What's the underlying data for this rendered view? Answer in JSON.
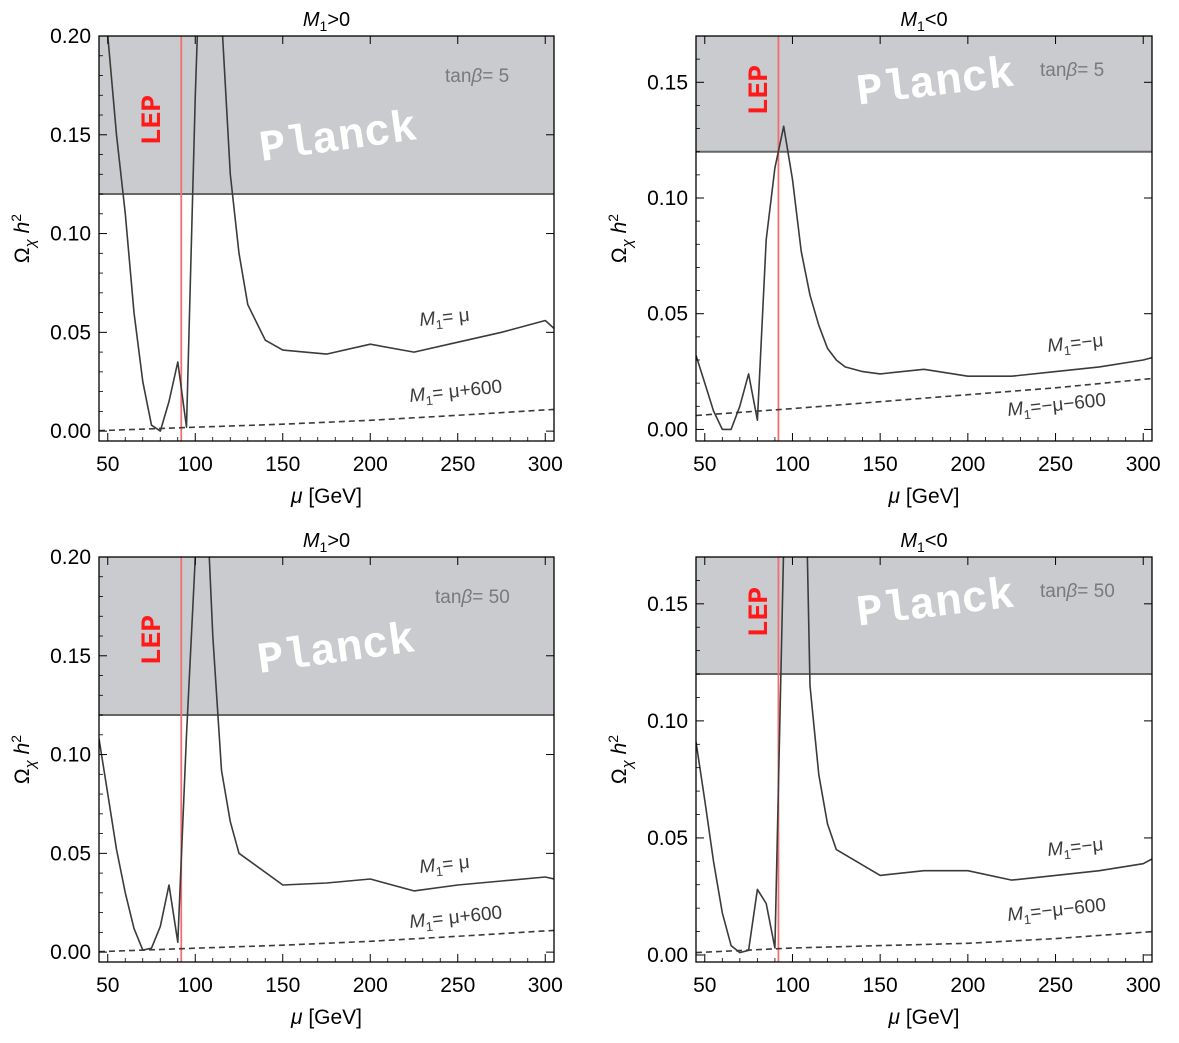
{
  "chart_data": [
    {
      "type": "line",
      "title": "M1>0",
      "title_main": "M",
      "title_sub": "1",
      "title_tail": ">0",
      "xlabel": "[GeV]",
      "xlabel_var": "μ",
      "ylabel_omega": "Ω",
      "ylabel_chi": "χ",
      "ylabel_h": "h",
      "ylabel_pow": "2",
      "xlim": [
        45,
        305
      ],
      "ylim": [
        -0.005,
        0.2
      ],
      "xticks": [
        50,
        100,
        150,
        200,
        250,
        300
      ],
      "yticks": [
        0.0,
        0.05,
        0.1,
        0.15,
        0.2
      ],
      "ytick_labels": [
        "0.00",
        "0.05",
        "0.10",
        "0.15",
        "0.20"
      ],
      "shaded_region": {
        "label": "Planck",
        "y_from": 0.12,
        "y_to": 0.2
      },
      "lep_line": {
        "label": "LEP",
        "x": 92
      },
      "annotation": {
        "text": "tanβ= 5",
        "pre": "tan",
        "beta": "β",
        "post": "= 5"
      },
      "series": [
        {
          "name": "M1= μ",
          "label_a": "M",
          "label_sub": "1",
          "label_b": "= μ",
          "style": "solid",
          "x": [
            45,
            50,
            55,
            60,
            65,
            70,
            75,
            80,
            85,
            90,
            95,
            100,
            105,
            110,
            115,
            120,
            125,
            130,
            140,
            150,
            175,
            200,
            225,
            250,
            275,
            300,
            305
          ],
          "y": [
            0.25,
            0.2,
            0.15,
            0.11,
            0.06,
            0.025,
            0.003,
            0.0,
            0.015,
            0.035,
            0.002,
            0.17,
            0.3,
            0.3,
            0.21,
            0.13,
            0.09,
            0.064,
            0.046,
            0.041,
            0.039,
            0.044,
            0.04,
            0.045,
            0.05,
            0.056,
            0.052
          ]
        },
        {
          "name": "M1= μ+600",
          "label_a": "M",
          "label_sub": "1",
          "label_b": "= μ+600",
          "style": "dashed",
          "x": [
            45,
            100,
            150,
            200,
            250,
            305
          ],
          "y": [
            0.0002,
            0.002,
            0.0035,
            0.0055,
            0.008,
            0.011
          ]
        }
      ]
    },
    {
      "type": "line",
      "title": "M1<0",
      "title_main": "M",
      "title_sub": "1",
      "title_tail": "<0",
      "xlabel": "[GeV]",
      "xlabel_var": "μ",
      "ylabel_omega": "Ω",
      "ylabel_chi": "χ",
      "ylabel_h": "h",
      "ylabel_pow": "2",
      "xlim": [
        45,
        305
      ],
      "ylim": [
        -0.005,
        0.17
      ],
      "xticks": [
        50,
        100,
        150,
        200,
        250,
        300
      ],
      "yticks": [
        0.0,
        0.05,
        0.1,
        0.15
      ],
      "ytick_labels": [
        "0.00",
        "0.05",
        "0.10",
        "0.15"
      ],
      "shaded_region": {
        "label": "Planck",
        "y_from": 0.12,
        "y_to": 0.17
      },
      "lep_line": {
        "label": "LEP",
        "x": 92
      },
      "annotation": {
        "text": "tanβ= 5",
        "pre": "tan",
        "beta": "β",
        "post": "= 5"
      },
      "series": [
        {
          "name": "M1=−μ",
          "label_a": "M",
          "label_sub": "1",
          "label_b": "=−μ",
          "style": "solid",
          "x": [
            45,
            50,
            55,
            60,
            65,
            70,
            75,
            80,
            85,
            90,
            95,
            100,
            105,
            110,
            115,
            120,
            125,
            130,
            140,
            150,
            175,
            200,
            225,
            250,
            275,
            300,
            305
          ],
          "y": [
            0.032,
            0.02,
            0.008,
            0.0,
            0.0,
            0.01,
            0.024,
            0.004,
            0.082,
            0.113,
            0.131,
            0.108,
            0.077,
            0.058,
            0.045,
            0.035,
            0.03,
            0.027,
            0.025,
            0.024,
            0.026,
            0.023,
            0.023,
            0.025,
            0.027,
            0.03,
            0.031
          ]
        },
        {
          "name": "M1=−μ−600",
          "label_a": "M",
          "label_sub": "1",
          "label_b": "=−μ−600",
          "style": "dashed",
          "x": [
            45,
            100,
            150,
            200,
            250,
            305
          ],
          "y": [
            0.006,
            0.009,
            0.012,
            0.015,
            0.018,
            0.022
          ]
        }
      ]
    },
    {
      "type": "line",
      "title": "M1>0",
      "title_main": "M",
      "title_sub": "1",
      "title_tail": ">0",
      "xlabel": "[GeV]",
      "xlabel_var": "μ",
      "ylabel_omega": "Ω",
      "ylabel_chi": "χ",
      "ylabel_h": "h",
      "ylabel_pow": "2",
      "xlim": [
        45,
        305
      ],
      "ylim": [
        -0.005,
        0.2
      ],
      "xticks": [
        50,
        100,
        150,
        200,
        250,
        300
      ],
      "yticks": [
        0.0,
        0.05,
        0.1,
        0.15,
        0.2
      ],
      "ytick_labels": [
        "0.00",
        "0.05",
        "0.10",
        "0.15",
        "0.20"
      ],
      "shaded_region": {
        "label": "Planck",
        "y_from": 0.12,
        "y_to": 0.2
      },
      "lep_line": {
        "label": "LEP",
        "x": 92
      },
      "annotation": {
        "text": "tanβ= 50",
        "pre": "tan",
        "beta": "β",
        "post": "= 50"
      },
      "series": [
        {
          "name": "M1= μ",
          "label_a": "M",
          "label_sub": "1",
          "label_b": "= μ",
          "style": "solid",
          "x": [
            45,
            50,
            55,
            60,
            65,
            70,
            75,
            80,
            85,
            90,
            95,
            100,
            105,
            110,
            115,
            120,
            125,
            150,
            175,
            200,
            225,
            250,
            275,
            300,
            305
          ],
          "y": [
            0.108,
            0.08,
            0.052,
            0.03,
            0.012,
            0.001,
            0.002,
            0.013,
            0.034,
            0.005,
            0.11,
            0.2,
            0.26,
            0.16,
            0.092,
            0.066,
            0.05,
            0.034,
            0.035,
            0.037,
            0.031,
            0.034,
            0.036,
            0.038,
            0.037
          ]
        },
        {
          "name": "M1= μ+600",
          "label_a": "M",
          "label_sub": "1",
          "label_b": "= μ+600",
          "style": "dashed",
          "x": [
            45,
            100,
            150,
            200,
            250,
            305
          ],
          "y": [
            0.0002,
            0.002,
            0.0035,
            0.0055,
            0.008,
            0.011
          ]
        }
      ]
    },
    {
      "type": "line",
      "title": "M1<0",
      "title_main": "M",
      "title_sub": "1",
      "title_tail": "<0",
      "xlabel": "[GeV]",
      "xlabel_var": "μ",
      "ylabel_omega": "Ω",
      "ylabel_chi": "χ",
      "ylabel_h": "h",
      "ylabel_pow": "2",
      "xlim": [
        45,
        305
      ],
      "ylim": [
        -0.003,
        0.17
      ],
      "xticks": [
        50,
        100,
        150,
        200,
        250,
        300
      ],
      "yticks": [
        0.0,
        0.05,
        0.1,
        0.15
      ],
      "ytick_labels": [
        "0.00",
        "0.05",
        "0.10",
        "0.15"
      ],
      "shaded_region": {
        "label": "Planck",
        "y_from": 0.12,
        "y_to": 0.17
      },
      "lep_line": {
        "label": "LEP",
        "x": 92
      },
      "annotation": {
        "text": "tanβ= 50",
        "pre": "tan",
        "beta": "β",
        "post": "= 50"
      },
      "series": [
        {
          "name": "M1=−μ",
          "label_a": "M",
          "label_sub": "1",
          "label_b": "=−μ",
          "style": "solid",
          "x": [
            45,
            50,
            55,
            60,
            65,
            70,
            75,
            80,
            85,
            90,
            95,
            100,
            105,
            110,
            115,
            120,
            125,
            150,
            175,
            200,
            225,
            250,
            275,
            300,
            305
          ],
          "y": [
            0.091,
            0.066,
            0.04,
            0.018,
            0.004,
            0.001,
            0.002,
            0.028,
            0.022,
            0.003,
            0.175,
            0.26,
            0.3,
            0.115,
            0.077,
            0.056,
            0.045,
            0.034,
            0.036,
            0.036,
            0.032,
            0.034,
            0.036,
            0.039,
            0.041
          ]
        },
        {
          "name": "M1=−μ−600",
          "label_a": "M",
          "label_sub": "1",
          "label_b": "=−μ−600",
          "style": "dashed",
          "x": [
            45,
            100,
            150,
            200,
            250,
            305
          ],
          "y": [
            0.001,
            0.003,
            0.004,
            0.005,
            0.007,
            0.01
          ]
        }
      ]
    }
  ],
  "colors": {
    "planck_fill": "#cacbce",
    "planck_edge": "#666666",
    "lep_line": "#f07070",
    "lep_text": "#ff1a1a",
    "curve": "#3b3b3b",
    "axis": "#000000"
  }
}
